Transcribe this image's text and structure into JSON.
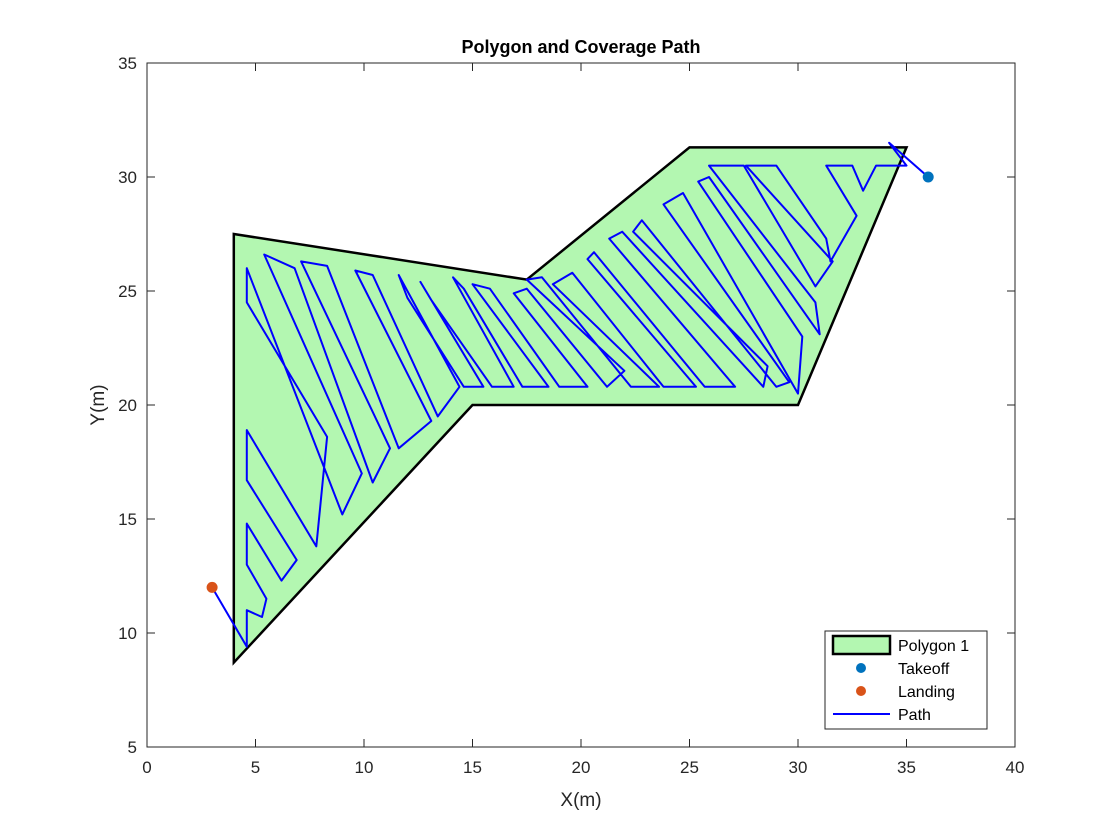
{
  "chart_data": {
    "type": "line",
    "title": "Polygon and Coverage Path",
    "xlabel": "X(m)",
    "ylabel": "Y(m)",
    "xlim": [
      0,
      40
    ],
    "ylim": [
      5,
      35
    ],
    "xticks": [
      0,
      5,
      10,
      15,
      20,
      25,
      30,
      35,
      40
    ],
    "yticks": [
      5,
      10,
      15,
      20,
      25,
      30,
      35
    ],
    "grid": false,
    "legend_location": "bottom-right",
    "colors": {
      "polygon_fill": "#b3f7b1",
      "polygon_edge": "#000000",
      "takeoff": "#0072bd",
      "landing": "#d95319",
      "path": "#0000ff"
    },
    "polygon": {
      "name": "Polygon 1",
      "vertices": [
        [
          4,
          27.5
        ],
        [
          17.5,
          25.5
        ],
        [
          25,
          31.3
        ],
        [
          35,
          31.3
        ],
        [
          30,
          20
        ],
        [
          15,
          20
        ],
        [
          4,
          8.7
        ]
      ]
    },
    "takeoff": {
      "name": "Takeoff",
      "x": 36,
      "y": 30
    },
    "landing": {
      "name": "Landing",
      "x": 3,
      "y": 12
    },
    "path": {
      "name": "Path",
      "points": [
        [
          36,
          30
        ],
        [
          34.2,
          31.5
        ],
        [
          35,
          30.5
        ],
        [
          33.6,
          30.5
        ],
        [
          33,
          29.4
        ],
        [
          32.5,
          30.5
        ],
        [
          31.3,
          30.5
        ],
        [
          32.7,
          28.3
        ],
        [
          31.5,
          26.3
        ],
        [
          31.3,
          27.3
        ],
        [
          29,
          30.5
        ],
        [
          27.6,
          30.5
        ],
        [
          31.6,
          26.3
        ],
        [
          30.8,
          25.2
        ],
        [
          27.5,
          30.5
        ],
        [
          25.9,
          30.5
        ],
        [
          30.8,
          24.5
        ],
        [
          31,
          23.1
        ],
        [
          25.9,
          30
        ],
        [
          25.4,
          29.8
        ],
        [
          30.2,
          23
        ],
        [
          30,
          20.5
        ],
        [
          24.7,
          29.3
        ],
        [
          23.8,
          28.8
        ],
        [
          29.6,
          21
        ],
        [
          29,
          20.8
        ],
        [
          22.8,
          28.1
        ],
        [
          22.4,
          27.6
        ],
        [
          28.6,
          21.7
        ],
        [
          28.4,
          20.8
        ],
        [
          21.9,
          27.6
        ],
        [
          21.3,
          27.3
        ],
        [
          27.1,
          20.8
        ],
        [
          25.7,
          20.8
        ],
        [
          20.6,
          26.7
        ],
        [
          20.3,
          26.4
        ],
        [
          25.3,
          20.8
        ],
        [
          23.8,
          20.8
        ],
        [
          19.6,
          25.8
        ],
        [
          18.7,
          25.3
        ],
        [
          23.6,
          20.8
        ],
        [
          22.3,
          20.8
        ],
        [
          18.2,
          25.6
        ],
        [
          17.5,
          25.5
        ],
        [
          22,
          21.5
        ],
        [
          21.2,
          20.8
        ],
        [
          17.5,
          25.1
        ],
        [
          16.9,
          24.9
        ],
        [
          20.3,
          20.8
        ],
        [
          19,
          20.8
        ],
        [
          15.8,
          25.1
        ],
        [
          15,
          25.3
        ],
        [
          18.5,
          20.8
        ],
        [
          17.3,
          20.8
        ],
        [
          14.6,
          25.1
        ],
        [
          14.1,
          25.6
        ],
        [
          16.9,
          20.8
        ],
        [
          15.9,
          20.8
        ],
        [
          13.1,
          24.6
        ],
        [
          12.6,
          25.4
        ],
        [
          15.5,
          20.8
        ],
        [
          14.6,
          20.8
        ],
        [
          12,
          24.7
        ],
        [
          11.6,
          25.7
        ],
        [
          14.4,
          20.8
        ],
        [
          13.4,
          19.5
        ],
        [
          10.4,
          25.7
        ],
        [
          9.6,
          25.9
        ],
        [
          13.1,
          19.3
        ],
        [
          11.6,
          18.1
        ],
        [
          8.3,
          26.1
        ],
        [
          7.1,
          26.3
        ],
        [
          11.2,
          18.1
        ],
        [
          10.4,
          16.6
        ],
        [
          6.8,
          26
        ],
        [
          5.4,
          26.6
        ],
        [
          9.9,
          17
        ],
        [
          9,
          15.2
        ],
        [
          4.6,
          26
        ],
        [
          4.6,
          24.5
        ],
        [
          8.3,
          18.6
        ],
        [
          7.8,
          13.8
        ],
        [
          4.6,
          18.9
        ],
        [
          4.6,
          16.7
        ],
        [
          6.9,
          13.2
        ],
        [
          6.2,
          12.3
        ],
        [
          4.6,
          14.8
        ],
        [
          4.6,
          13
        ],
        [
          5.5,
          11.5
        ],
        [
          5.3,
          10.7
        ],
        [
          4.6,
          11
        ],
        [
          4.6,
          9.4
        ],
        [
          3,
          12
        ]
      ]
    }
  }
}
